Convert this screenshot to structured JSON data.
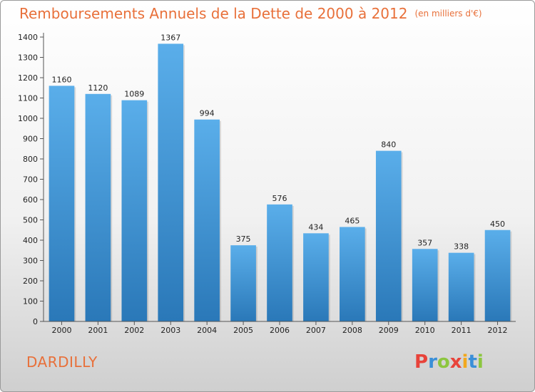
{
  "header": {
    "title": "Remboursements Annuels de la Dette de 2000 à 2012",
    "unit": "(en milliers d'€)"
  },
  "footer": {
    "town": "DARDILLY",
    "logo_letters": [
      "P",
      "r",
      "o",
      "x",
      "i",
      "t",
      "i"
    ],
    "logo_colors": [
      "#e8433a",
      "#3a8fd8",
      "#8cc63f",
      "#e8433a",
      "#f2a81d",
      "#3a8fd8",
      "#8cc63f"
    ]
  },
  "chart_data": {
    "type": "bar",
    "categories": [
      "2000",
      "2001",
      "2002",
      "2003",
      "2004",
      "2005",
      "2006",
      "2007",
      "2008",
      "2009",
      "2010",
      "2011",
      "2012"
    ],
    "values": [
      1160,
      1120,
      1089,
      1367,
      994,
      375,
      576,
      434,
      465,
      840,
      357,
      338,
      450
    ],
    "title": "Remboursements Annuels de la Dette de 2000 à 2012",
    "xlabel": "",
    "ylabel": "",
    "ylim": [
      0,
      1400
    ],
    "yticks": [
      0,
      100,
      200,
      300,
      400,
      500,
      600,
      700,
      800,
      900,
      1000,
      1100,
      1200,
      1300,
      1400
    ],
    "grid": false,
    "legend": "none",
    "bar_color_top": "#5aaeea",
    "bar_color_bottom": "#2a78b8"
  }
}
